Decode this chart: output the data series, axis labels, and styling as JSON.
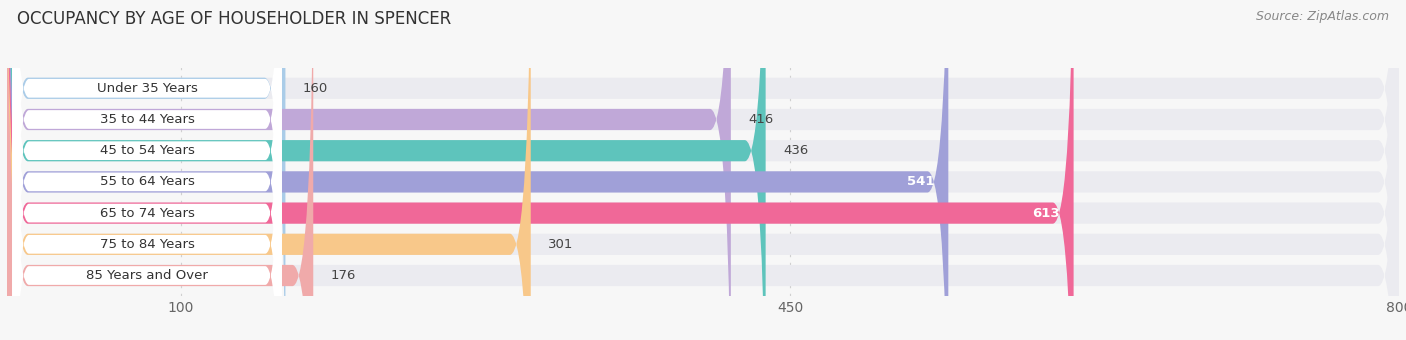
{
  "title": "OCCUPANCY BY AGE OF HOUSEHOLDER IN SPENCER",
  "source": "Source: ZipAtlas.com",
  "categories": [
    "Under 35 Years",
    "35 to 44 Years",
    "45 to 54 Years",
    "55 to 64 Years",
    "65 to 74 Years",
    "75 to 84 Years",
    "85 Years and Over"
  ],
  "values": [
    160,
    416,
    436,
    541,
    613,
    301,
    176
  ],
  "bar_colors": [
    "#aacce8",
    "#c0a8d8",
    "#5ec4bc",
    "#a0a0d8",
    "#f06898",
    "#f8c88a",
    "#f0aaaa"
  ],
  "value_label_colors": [
    "#444444",
    "#444444",
    "#444444",
    "#ffffff",
    "#ffffff",
    "#444444",
    "#444444"
  ],
  "xmin": 0,
  "xmax": 800,
  "xticks": [
    100,
    450,
    800
  ],
  "bg_color": "#f7f7f7",
  "bar_bg_color": "#ebebf0",
  "pill_color": "#ffffff",
  "title_fontsize": 12,
  "source_fontsize": 9,
  "label_fontsize": 9.5,
  "value_fontsize": 9.5,
  "tick_fontsize": 10,
  "bar_height": 0.68,
  "figsize": [
    14.06,
    3.4
  ]
}
